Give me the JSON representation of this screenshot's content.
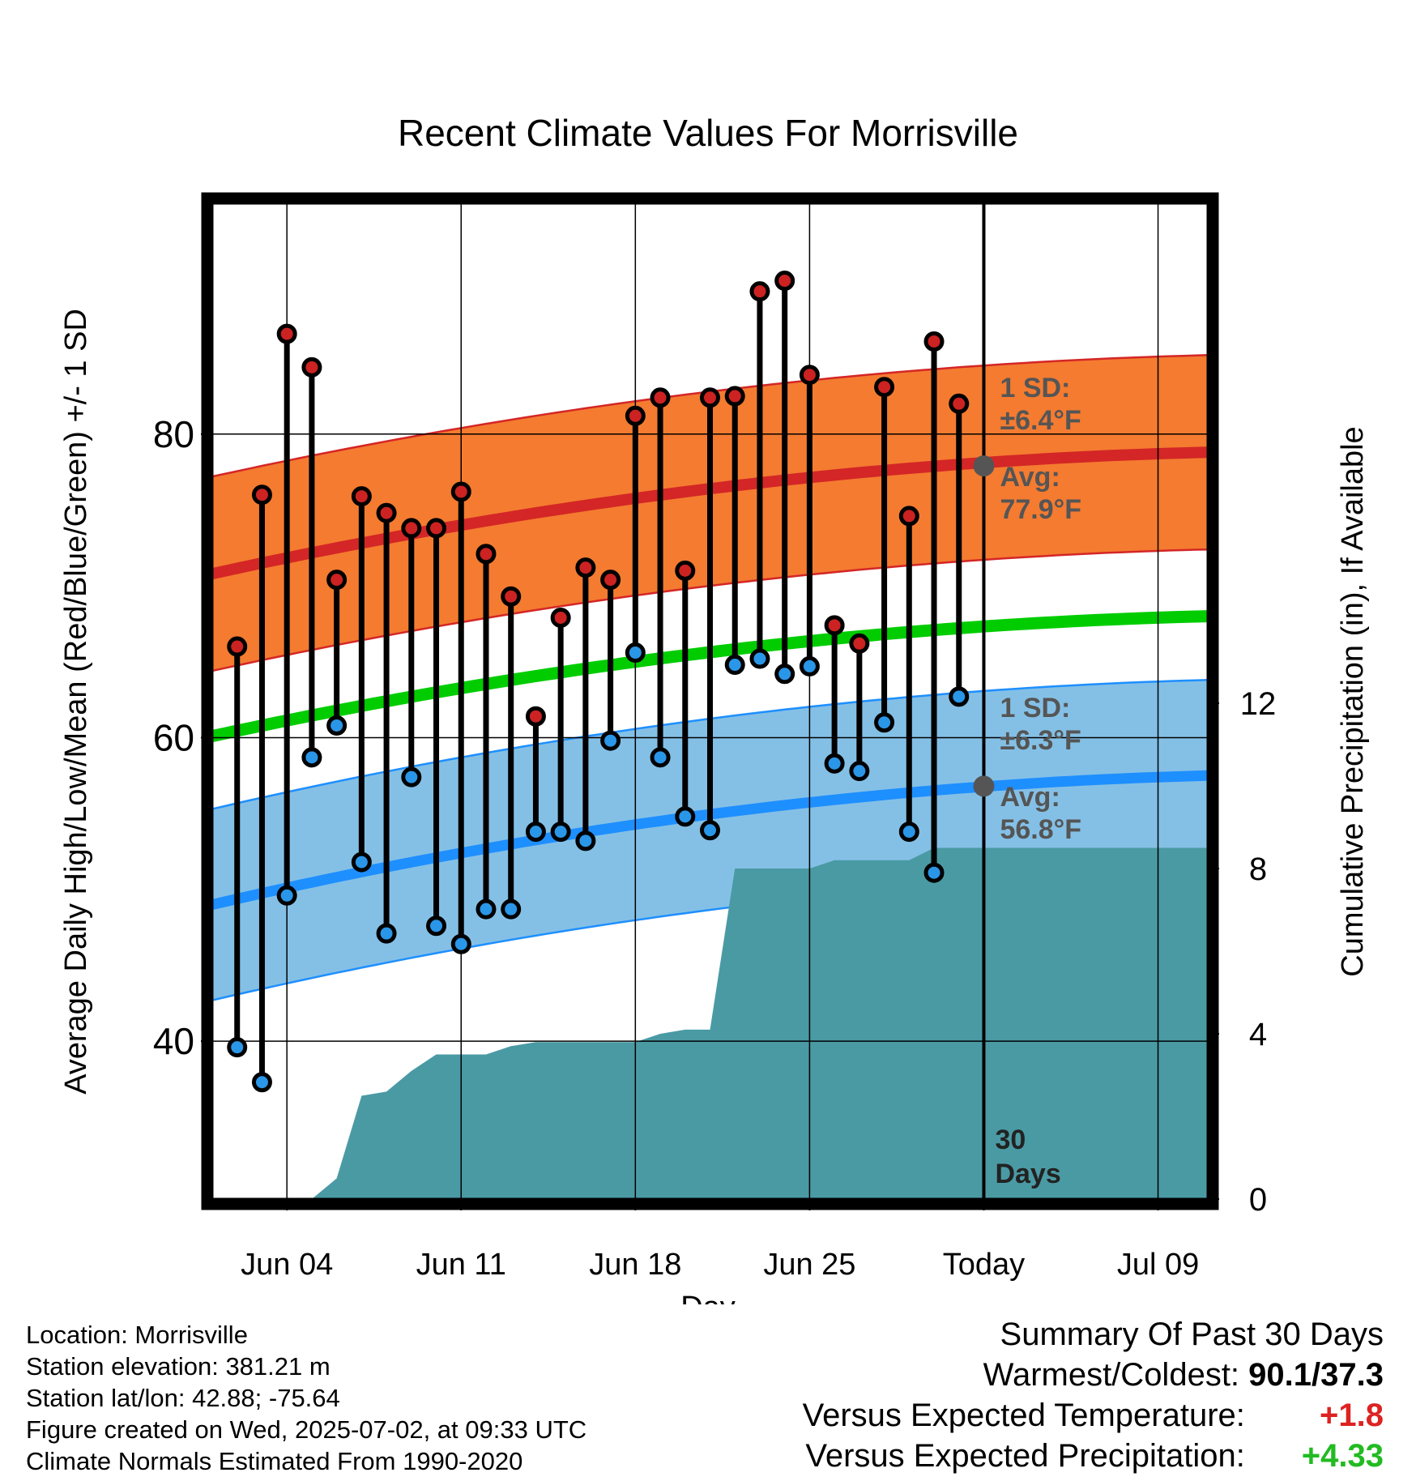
{
  "chart_data": {
    "type": "line",
    "title": "Recent Climate Values For Morrisville",
    "xlabel": "Day",
    "ylabel": "Average Daily High/Low/Mean (Red/Blue/Green) +/- 1 SD",
    "ylabel_right": "Cumulative Precipitation (in), If Available",
    "ylim": [
      29.6,
      95.2
    ],
    "ylim_right": [
      0,
      24.1
    ],
    "yticks": [
      "40",
      "60",
      "80"
    ],
    "yticks_right": [
      "0",
      "4",
      "8",
      "12"
    ],
    "xticks": [
      "Jun 04",
      "Jun 11",
      "Jun 18",
      "Jun 25",
      "Today",
      "Jul 09"
    ],
    "x_start": "2025-06-01",
    "x_end": "2025-07-11",
    "today": "2025-07-02",
    "days": [
      "2025-06-02",
      "2025-06-03",
      "2025-06-04",
      "2025-06-05",
      "2025-06-06",
      "2025-06-07",
      "2025-06-08",
      "2025-06-09",
      "2025-06-10",
      "2025-06-11",
      "2025-06-12",
      "2025-06-13",
      "2025-06-14",
      "2025-06-15",
      "2025-06-16",
      "2025-06-17",
      "2025-06-18",
      "2025-06-19",
      "2025-06-20",
      "2025-06-21",
      "2025-06-22",
      "2025-06-23",
      "2025-06-24",
      "2025-06-25",
      "2025-06-26",
      "2025-06-27",
      "2025-06-28",
      "2025-06-29",
      "2025-06-30",
      "2025-07-01"
    ],
    "series": [
      {
        "name": "High",
        "values": [
          66.0,
          76.0,
          86.6,
          84.4,
          70.4,
          75.9,
          74.8,
          73.8,
          73.8,
          76.2,
          72.1,
          69.3,
          61.4,
          67.9,
          71.2,
          70.4,
          81.2,
          82.4,
          71.0,
          82.4,
          82.5,
          89.4,
          90.1,
          83.9,
          67.4,
          66.2,
          83.1,
          74.6,
          86.1,
          82.0
        ]
      },
      {
        "name": "Low",
        "values": [
          39.6,
          37.3,
          49.6,
          58.7,
          60.8,
          51.8,
          47.1,
          57.4,
          47.6,
          46.4,
          48.7,
          48.7,
          53.8,
          53.8,
          53.2,
          59.8,
          65.6,
          58.7,
          54.8,
          53.9,
          64.8,
          65.2,
          64.2,
          64.7,
          58.3,
          57.8,
          61.0,
          53.8,
          51.1,
          62.7
        ]
      }
    ],
    "normal_high": {
      "start": 70.8,
      "end": 78.8,
      "sd": 6.4
    },
    "normal_mean": {
      "start": 60.1,
      "end": 68.0
    },
    "normal_low": {
      "start": 49.0,
      "end": 57.5,
      "sd": 6.3
    },
    "precip_cumulative": [
      [
        "2025-06-05",
        0
      ],
      [
        "2025-06-06",
        0.5
      ],
      [
        "2025-06-07",
        2.5
      ],
      [
        "2025-06-08",
        2.6
      ],
      [
        "2025-06-09",
        3.1
      ],
      [
        "2025-06-10",
        3.5
      ],
      [
        "2025-06-11",
        3.5
      ],
      [
        "2025-06-12",
        3.5
      ],
      [
        "2025-06-13",
        3.7
      ],
      [
        "2025-06-14",
        3.8
      ],
      [
        "2025-06-17",
        3.8
      ],
      [
        "2025-06-18",
        3.8
      ],
      [
        "2025-06-19",
        4.0
      ],
      [
        "2025-06-20",
        4.1
      ],
      [
        "2025-06-21",
        4.1
      ],
      [
        "2025-06-22",
        8.0
      ],
      [
        "2025-06-25",
        8.0
      ],
      [
        "2025-06-26",
        8.2
      ],
      [
        "2025-06-29",
        8.2
      ],
      [
        "2025-06-30",
        8.5
      ],
      [
        "2025-07-01",
        8.5
      ],
      [
        "2025-07-11",
        8.5
      ]
    ],
    "annotations": {
      "high_sd_label": "1 SD:",
      "high_sd_value": "±6.4°F",
      "high_avg_label": "Avg:",
      "high_avg_value": "77.9°F",
      "high_avg": 77.9,
      "low_sd_label": "1 SD:",
      "low_sd_value": "±6.3°F",
      "low_avg_label": "Avg:",
      "low_avg_value": "56.8°F",
      "low_avg": 56.8,
      "days_label": "30",
      "days_label2": "Days"
    },
    "colors": {
      "high_band": "#f47b30",
      "high_line": "#d42626",
      "mean_line": "#00cc00",
      "low_band": "#84c0e6",
      "low_line": "#1e8fff",
      "precip": "#4a9aa4",
      "high_dot": "#cc2222",
      "low_dot": "#2a96e8",
      "avg_dot": "#555555",
      "annotation_text": "#555555"
    }
  },
  "info": {
    "location": "Location: Morrisville",
    "elevation": "Station elevation: 381.21 m",
    "latlon": "Station lat/lon: 42.88; -75.64",
    "created": "Figure created on Wed, 2025-07-02, at 09:33 UTC",
    "normals": "Climate Normals Estimated From 1990-2020"
  },
  "summary": {
    "title": "Summary Of Past 30 Days",
    "warmest_label": "Warmest/Coldest:",
    "warmest_value": "90.1/37.3",
    "temp_label": "Versus Expected Temperature:",
    "temp_value": "+1.8",
    "temp_color": "#dd2222",
    "precip_label": "Versus Expected Precipitation:",
    "precip_value": "+4.33",
    "precip_color": "#22bb22"
  }
}
